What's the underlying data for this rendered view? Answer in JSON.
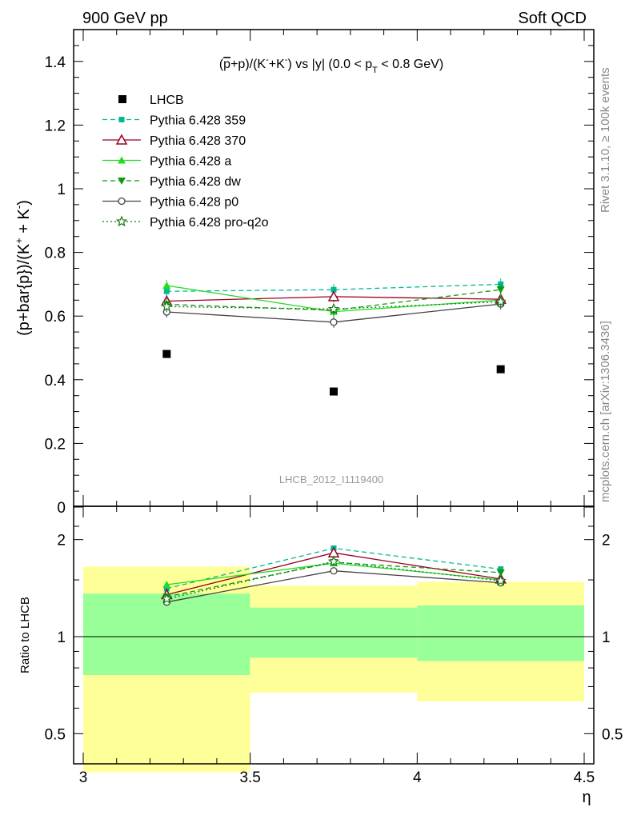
{
  "header": {
    "left": "900 GeV pp",
    "right": "Soft QCD"
  },
  "side_texts": {
    "rivet": "Rivet 3.1.10, ≥ 100k events",
    "mcplots": "mcplots.cern.ch [arXiv:1306.3436]"
  },
  "watermark": "LHCB_2012_I1119400",
  "colors": {
    "data": "#000000",
    "p359": "#00b894",
    "p370": "#990022",
    "pa": "#22dd22",
    "pdw": "#119911",
    "pp0": "#444444",
    "pq2o": "#117711",
    "band_outer": "#ffff99",
    "band_inner": "#99ff99"
  },
  "chart_data": [
    {
      "type": "scatter",
      "title_parts": {
        "t1": "(",
        "t2": "p",
        "t3": "+p)/(K",
        "t4": "-",
        "t5": "+K",
        "t6": "-",
        "t7": ") vs |y| (0.0 < p",
        "t8": "T",
        "t9": " < 0.8 GeV)"
      },
      "ylabel_parts": {
        "a": "(p+bar{p})/(K",
        "b": "+",
        "c": " + K",
        "d": "-",
        "e": ")"
      },
      "xlim": [
        3,
        4.5
      ],
      "ylim": [
        0,
        1.5
      ],
      "yticks": [
        0,
        0.2,
        0.4,
        0.6,
        0.8,
        1,
        1.2,
        1.4
      ],
      "ytick_labels": [
        "0",
        "0.2",
        "0.4",
        "0.6",
        "0.8",
        "1",
        "1.2",
        "1.4"
      ],
      "x": [
        3.25,
        3.75,
        4.25
      ],
      "series": [
        {
          "name": "LHCB",
          "key": "data",
          "style": "data",
          "values": [
            0.481,
            0.363,
            0.433
          ]
        },
        {
          "name": "Pythia 6.428 359",
          "key": "p359",
          "style": "dashed",
          "marker": "filled-square",
          "values": [
            0.678,
            0.683,
            0.7
          ]
        },
        {
          "name": "Pythia 6.428 370",
          "key": "p370",
          "style": "solid",
          "marker": "open-triangle",
          "values": [
            0.647,
            0.661,
            0.653
          ]
        },
        {
          "name": "Pythia 6.428 a",
          "key": "pa",
          "style": "solid",
          "marker": "filled-triangle",
          "values": [
            0.696,
            0.614,
            0.65
          ]
        },
        {
          "name": "Pythia 6.428 dw",
          "key": "pdw",
          "style": "dashed",
          "marker": "filled-down-triangle",
          "values": [
            0.637,
            0.618,
            0.683
          ]
        },
        {
          "name": "Pythia 6.428 p0",
          "key": "pp0",
          "style": "solid",
          "marker": "open-circle",
          "values": [
            0.613,
            0.581,
            0.638
          ]
        },
        {
          "name": "Pythia 6.428 pro-q2o",
          "key": "pq2o",
          "style": "dotted",
          "marker": "open-star",
          "values": [
            0.63,
            0.622,
            0.645
          ]
        }
      ],
      "legend_placement": "top-left"
    },
    {
      "type": "scatter",
      "ylabel": "Ratio to LHCB",
      "xlabel": "η",
      "xlim": [
        3,
        4.5
      ],
      "ylim": [
        0.38,
        2.25
      ],
      "yscale": "log",
      "yticks": [
        0.5,
        1,
        2
      ],
      "ytick_labels": [
        "0.5",
        "1",
        "2"
      ],
      "xticks": [
        3,
        3.5,
        4,
        4.5
      ],
      "xtick_labels": [
        "3",
        "3.5",
        "4",
        "4.5"
      ],
      "bands": [
        {
          "x0": 3.0,
          "x1": 3.5,
          "outer": [
            0.38,
            1.65
          ],
          "inner": [
            0.76,
            1.36
          ]
        },
        {
          "x0": 3.5,
          "x1": 4.0,
          "outer": [
            0.67,
            1.44
          ],
          "inner": [
            0.86,
            1.23
          ]
        },
        {
          "x0": 4.0,
          "x1": 4.5,
          "outer": [
            0.63,
            1.48
          ],
          "inner": [
            0.84,
            1.25
          ]
        }
      ],
      "x": [
        3.25,
        3.75,
        4.25
      ],
      "series": [
        {
          "key": "p359",
          "values": [
            1.41,
            1.88,
            1.62
          ]
        },
        {
          "key": "p370",
          "values": [
            1.35,
            1.82,
            1.51
          ]
        },
        {
          "key": "pa",
          "values": [
            1.45,
            1.69,
            1.5
          ]
        },
        {
          "key": "pdw",
          "values": [
            1.33,
            1.7,
            1.58
          ]
        },
        {
          "key": "pp0",
          "values": [
            1.28,
            1.6,
            1.47
          ]
        },
        {
          "key": "pq2o",
          "values": [
            1.31,
            1.71,
            1.49
          ]
        }
      ]
    }
  ]
}
